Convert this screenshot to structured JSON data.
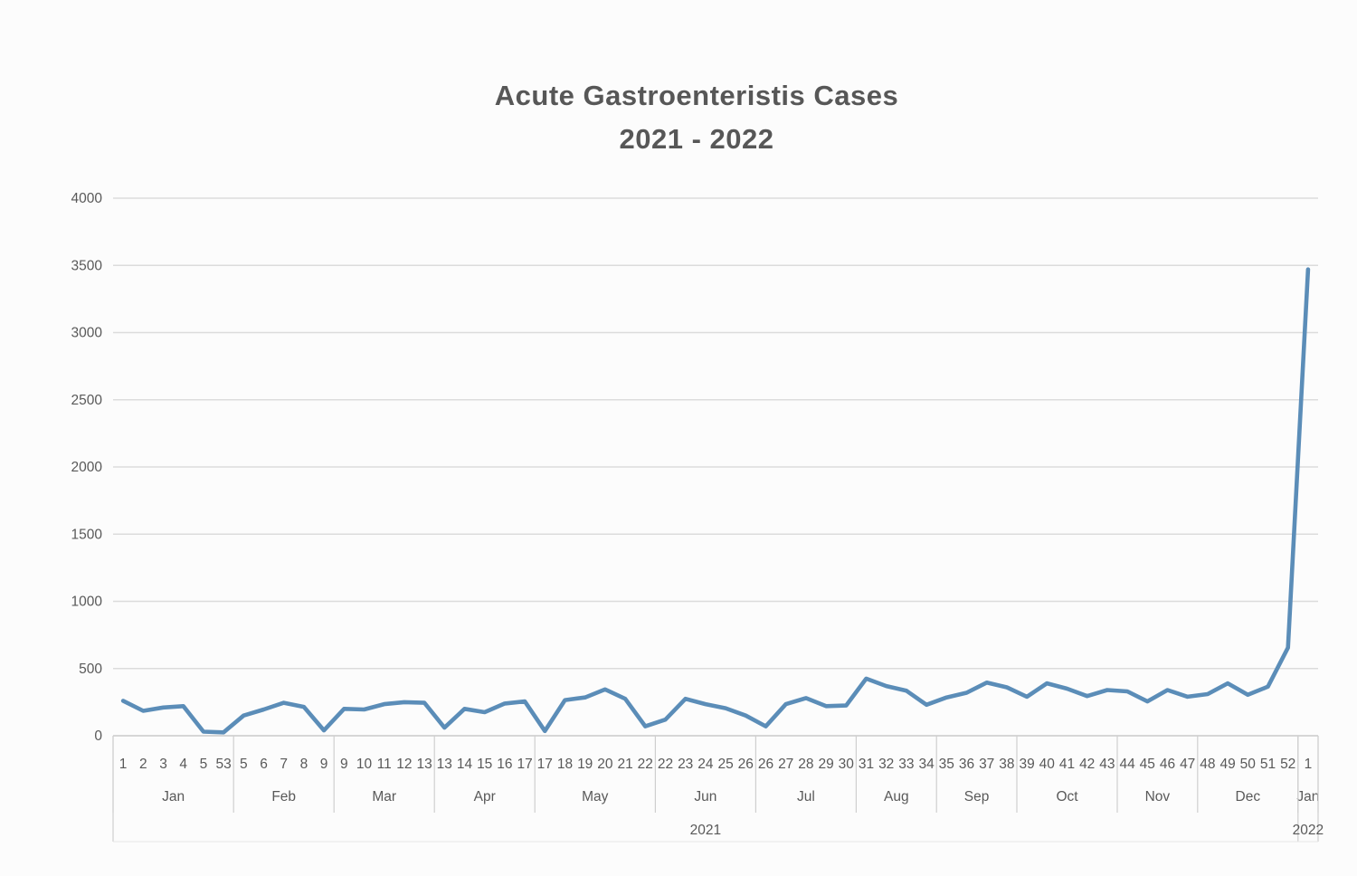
{
  "page": {
    "background_color": "#fcfcfc",
    "text_color": "#595959"
  },
  "header": {
    "title": "Acute Gastroenteristis Cases",
    "subtitle": "2021 - 2022"
  },
  "chart_data": {
    "type": "line",
    "title": "Acute Gastroenteristis Cases",
    "subtitle": "2021 - 2022",
    "line_color": "#5b8db8",
    "gridline_color": "#dcdcdc",
    "axis_line_color": "#c9c9c9",
    "separator_color": "#cfcfcf",
    "ylim": [
      0,
      4000
    ],
    "yticks": [
      0,
      500,
      1000,
      1500,
      2000,
      2500,
      3000,
      3500,
      4000
    ],
    "grid": "horizontal",
    "legend": "none",
    "x_axis_note": "week numbers grouped by month, boundary weeks repeated",
    "months": [
      {
        "label": "Jan",
        "year": "2021",
        "weeks": [
          "1",
          "2",
          "3",
          "4",
          "5",
          "53"
        ],
        "values": [
          260,
          185,
          210,
          220,
          30,
          25
        ]
      },
      {
        "label": "Feb",
        "year": "2021",
        "weeks": [
          "5",
          "6",
          "7",
          "8",
          "9"
        ],
        "values": [
          150,
          195,
          245,
          215,
          40
        ]
      },
      {
        "label": "Mar",
        "year": "2021",
        "weeks": [
          "9",
          "10",
          "11",
          "12",
          "13"
        ],
        "values": [
          200,
          195,
          235,
          250,
          245
        ]
      },
      {
        "label": "Apr",
        "year": "2021",
        "weeks": [
          "13",
          "14",
          "15",
          "16",
          "17"
        ],
        "values": [
          60,
          200,
          175,
          240,
          255
        ]
      },
      {
        "label": "May",
        "year": "2021",
        "weeks": [
          "17",
          "18",
          "19",
          "20",
          "21",
          "22"
        ],
        "values": [
          35,
          265,
          285,
          345,
          275,
          70
        ]
      },
      {
        "label": "Jun",
        "year": "2021",
        "weeks": [
          "22",
          "23",
          "24",
          "25",
          "26"
        ],
        "values": [
          120,
          275,
          235,
          205,
          150
        ]
      },
      {
        "label": "Jul",
        "year": "2021",
        "weeks": [
          "26",
          "27",
          "28",
          "29",
          "30"
        ],
        "values": [
          70,
          235,
          280,
          220,
          225
        ]
      },
      {
        "label": "Aug",
        "year": "2021",
        "weeks": [
          "31",
          "32",
          "33",
          "34"
        ],
        "values": [
          425,
          370,
          335,
          230
        ]
      },
      {
        "label": "Sep",
        "year": "2021",
        "weeks": [
          "35",
          "36",
          "37",
          "38"
        ],
        "values": [
          285,
          320,
          395,
          360
        ]
      },
      {
        "label": "Oct",
        "year": "2021",
        "weeks": [
          "39",
          "40",
          "41",
          "42",
          "43"
        ],
        "values": [
          290,
          390,
          350,
          295,
          340
        ]
      },
      {
        "label": "Nov",
        "year": "2021",
        "weeks": [
          "44",
          "45",
          "46",
          "47"
        ],
        "values": [
          330,
          255,
          340,
          290
        ]
      },
      {
        "label": "Dec",
        "year": "2021",
        "weeks": [
          "48",
          "49",
          "50",
          "51",
          "52"
        ],
        "values": [
          310,
          390,
          305,
          365,
          655
        ]
      },
      {
        "label": "Jan",
        "year": "2022",
        "weeks": [
          "1"
        ],
        "values": [
          3470
        ]
      }
    ],
    "years": [
      {
        "label": "2021",
        "month_count": 12
      },
      {
        "label": "2022",
        "month_count": 1
      }
    ]
  }
}
